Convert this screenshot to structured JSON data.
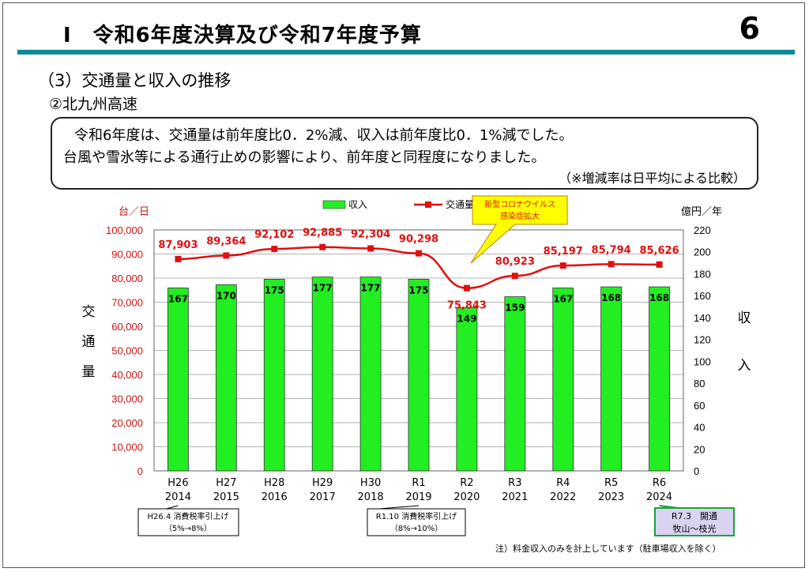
{
  "header": {
    "title": "Ⅰ　令和6年度決算及び令和7年度予算",
    "page_number": "6"
  },
  "section_title": "（3）交通量と収入の推移",
  "subsection_title": "②北九州高速",
  "summary": {
    "line1": "令和6年度は、交通量は前年度比0．2%減、収入は前年度比0．1%減でした。",
    "line2": "台風や雪氷等による通行止めの影響により、前年度と同程度になりました。",
    "line3": "（※増減率は日平均による比較）"
  },
  "chart_data": {
    "type": "bar",
    "categories": [
      "H26\n2014",
      "H27\n2015",
      "H28\n2016",
      "H29\n2017",
      "H30\n2018",
      "R1\n2019",
      "R2\n2020",
      "R3\n2021",
      "R4\n2022",
      "R5\n2023",
      "R6\n2024"
    ],
    "series": [
      {
        "name": "収入",
        "type": "bar",
        "axis": "right",
        "color": "#22ee22",
        "values": [
          167,
          170,
          175,
          177,
          177,
          175,
          149,
          159,
          167,
          168,
          168
        ]
      },
      {
        "name": "交通量",
        "type": "line",
        "axis": "left",
        "color": "#e01010",
        "values": [
          87903,
          89364,
          92102,
          92885,
          92304,
          90298,
          75843,
          80923,
          85197,
          85794,
          85626
        ]
      }
    ],
    "yleft": {
      "unit": "台／日",
      "label": "交通量",
      "min": 0,
      "max": 100000,
      "step": 10000,
      "tick_labels": [
        "0",
        "10,000",
        "20,000",
        "30,000",
        "40,000",
        "50,000",
        "60,000",
        "70,000",
        "80,000",
        "90,000",
        "100,000"
      ]
    },
    "yright": {
      "unit": "億円／年",
      "label": "収入",
      "min": 0,
      "max": 220,
      "step": 20,
      "tick_labels": [
        "0",
        "20",
        "40",
        "60",
        "80",
        "100",
        "120",
        "140",
        "160",
        "180",
        "200",
        "220"
      ]
    },
    "traffic_labels": [
      "87,903",
      "89,364",
      "92,102",
      "92,885",
      "92,304",
      "90,298",
      "75,843",
      "80,923",
      "85,197",
      "85,794",
      "85,626"
    ],
    "revenue_labels": [
      "167",
      "170",
      "175",
      "177",
      "177",
      "175",
      "149",
      "159",
      "167",
      "168",
      "168"
    ],
    "legend_placement": "top-center",
    "grid": true
  },
  "callouts": {
    "corona": {
      "line1": "新型コロナウイルス",
      "line2": "感染症拡大",
      "bg": "#ffff00",
      "text_color": "#e01010"
    },
    "tax1": {
      "line1": "H26.4 消費税率引上げ",
      "line2": "（5%→8%）"
    },
    "tax2": {
      "line1": "R1.10 消費税率引上げ",
      "line2": "（8%→10%）"
    },
    "open": {
      "line1": "R7.3　開通",
      "line2": "牧山～枝光",
      "bg": "#d9d2f0",
      "border": "#19a33a"
    }
  },
  "footnote": "注）料金収入のみを計上しています（駐車場収入を除く）",
  "colors": {
    "accent_rule": "#0e8a93",
    "left_axis_text": "#cc1111",
    "bar": "#22ee22",
    "line": "#e01010"
  }
}
